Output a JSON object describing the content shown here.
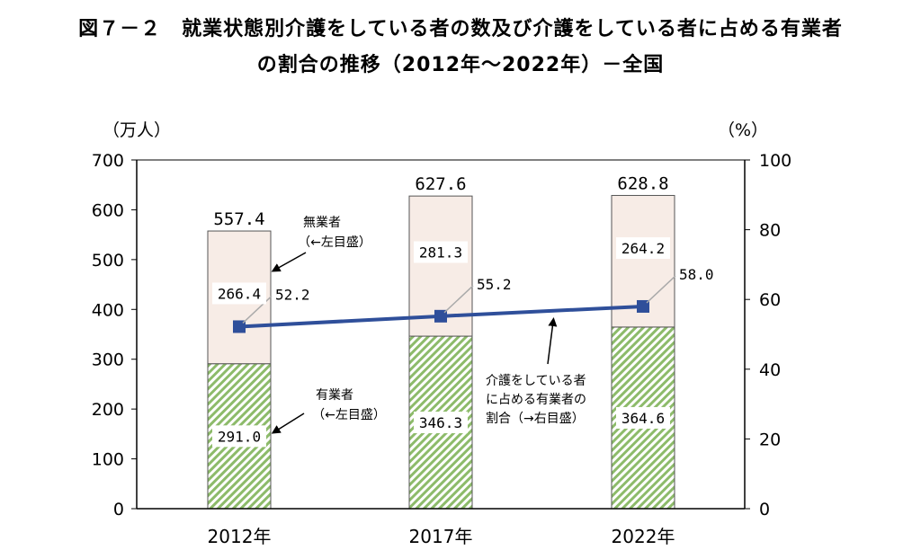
{
  "title_line1": "図７－２　就業状態別介護をしている者の数及び介護をしている者に占める有業者",
  "title_line2": "の割合の推移（2012年～2022年）－全国",
  "chart_data": {
    "type": "bar",
    "stacked": true,
    "categories": [
      "2012年",
      "2017年",
      "2022年"
    ],
    "series": [
      {
        "name": "有業者",
        "axis": "left",
        "values": [
          291.0,
          346.3,
          364.6
        ],
        "color": "#8dbb6a",
        "pattern": "diagonal-hatch"
      },
      {
        "name": "無業者",
        "axis": "left",
        "values": [
          266.4,
          281.3,
          264.2
        ],
        "color": "#f7ece6"
      },
      {
        "name": "介護をしている者に占める有業者の割合",
        "type": "line",
        "axis": "right",
        "values": [
          52.2,
          55.2,
          58.0
        ],
        "color": "#2f4f9a"
      }
    ],
    "totals": [
      "557.4",
      "627.6",
      "628.8"
    ],
    "value_labels": {
      "有業者": [
        "291.0",
        "346.3",
        "364.6"
      ],
      "無業者": [
        "266.4",
        "281.3",
        "264.2"
      ],
      "ratio": [
        "52.2",
        "55.2",
        "58.0"
      ]
    },
    "left_axis": {
      "unit": "（万人）",
      "ylim": [
        0,
        700
      ],
      "ticks": [
        "0",
        "100",
        "200",
        "300",
        "400",
        "500",
        "600",
        "700"
      ]
    },
    "right_axis": {
      "unit": "（%）",
      "ylim": [
        0,
        100
      ],
      "ticks": [
        "0",
        "20",
        "40",
        "60",
        "80",
        "100"
      ]
    },
    "annotations": {
      "nonworker": [
        "無業者",
        "（←左目盛）"
      ],
      "worker": [
        "有業者",
        "（←左目盛）"
      ],
      "ratio": [
        "介護をしている者",
        "に占める有業者の",
        "割合（→右目盛）"
      ]
    },
    "grid": false,
    "legend": "none"
  }
}
